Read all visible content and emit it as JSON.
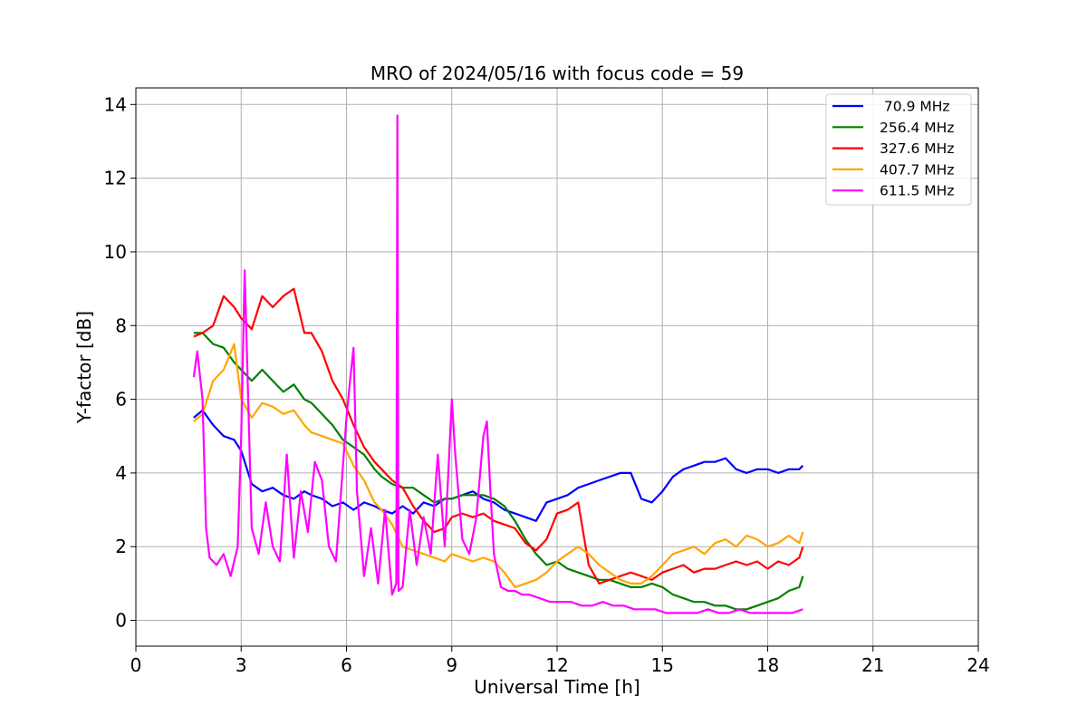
{
  "chart_data": {
    "type": "line",
    "title": "MRO of 2024/05/16 with focus code = 59",
    "xlabel": "Universal Time [h]",
    "ylabel": "Y-factor [dB]",
    "xlim": [
      0,
      24
    ],
    "ylim": [
      -0.7,
      14.45
    ],
    "xticks": [
      "0",
      "3",
      "6",
      "9",
      "12",
      "15",
      "18",
      "21",
      "24"
    ],
    "yticks": [
      "0",
      "2",
      "4",
      "6",
      "8",
      "10",
      "12",
      "14"
    ],
    "grid": true,
    "legend_position": "top-right",
    "series": [
      {
        "name": " 70.9 MHz",
        "color": "#0000ff",
        "x": [
          1.65,
          1.9,
          2.2,
          2.5,
          2.8,
          3.0,
          3.3,
          3.6,
          3.9,
          4.2,
          4.5,
          4.8,
          5.0,
          5.3,
          5.6,
          5.9,
          6.2,
          6.5,
          6.8,
          7.0,
          7.3,
          7.6,
          7.9,
          8.2,
          8.5,
          8.8,
          9.0,
          9.3,
          9.6,
          9.9,
          10.2,
          10.5,
          10.8,
          11.1,
          11.4,
          11.7,
          12.0,
          12.3,
          12.6,
          12.9,
          13.2,
          13.5,
          13.8,
          14.1,
          14.4,
          14.7,
          15.0,
          15.3,
          15.6,
          15.9,
          16.2,
          16.5,
          16.8,
          17.1,
          17.4,
          17.7,
          18.0,
          18.3,
          18.6,
          18.9,
          19.0
        ],
        "y": [
          5.5,
          5.7,
          5.3,
          5.0,
          4.9,
          4.6,
          3.7,
          3.5,
          3.6,
          3.4,
          3.3,
          3.5,
          3.4,
          3.3,
          3.1,
          3.2,
          3.0,
          3.2,
          3.1,
          3.0,
          2.9,
          3.1,
          2.9,
          3.2,
          3.1,
          3.3,
          3.3,
          3.4,
          3.5,
          3.3,
          3.2,
          3.0,
          2.9,
          2.8,
          2.7,
          3.2,
          3.3,
          3.4,
          3.6,
          3.7,
          3.8,
          3.9,
          4.0,
          4.0,
          3.3,
          3.2,
          3.5,
          3.9,
          4.1,
          4.2,
          4.3,
          4.3,
          4.4,
          4.1,
          4.0,
          4.1,
          4.1,
          4.0,
          4.1,
          4.1,
          4.2
        ]
      },
      {
        "name": "256.4 MHz",
        "color": "#008000",
        "x": [
          1.65,
          1.9,
          2.2,
          2.5,
          2.8,
          3.0,
          3.3,
          3.6,
          3.9,
          4.2,
          4.5,
          4.8,
          5.0,
          5.3,
          5.6,
          5.9,
          6.2,
          6.5,
          6.8,
          7.0,
          7.3,
          7.6,
          7.9,
          8.2,
          8.5,
          8.8,
          9.0,
          9.3,
          9.6,
          9.9,
          10.2,
          10.5,
          10.8,
          11.1,
          11.4,
          11.7,
          12.0,
          12.3,
          12.6,
          12.9,
          13.2,
          13.5,
          13.8,
          14.1,
          14.4,
          14.7,
          15.0,
          15.3,
          15.6,
          15.9,
          16.2,
          16.5,
          16.8,
          17.1,
          17.4,
          17.7,
          18.0,
          18.3,
          18.6,
          18.9,
          19.0
        ],
        "y": [
          7.8,
          7.8,
          7.5,
          7.4,
          7.0,
          6.8,
          6.5,
          6.8,
          6.5,
          6.2,
          6.4,
          6.0,
          5.9,
          5.6,
          5.3,
          4.9,
          4.7,
          4.5,
          4.1,
          3.9,
          3.7,
          3.6,
          3.6,
          3.4,
          3.2,
          3.3,
          3.3,
          3.4,
          3.4,
          3.4,
          3.3,
          3.1,
          2.7,
          2.2,
          1.8,
          1.5,
          1.6,
          1.4,
          1.3,
          1.2,
          1.1,
          1.1,
          1.0,
          0.9,
          0.9,
          1.0,
          0.9,
          0.7,
          0.6,
          0.5,
          0.5,
          0.4,
          0.4,
          0.3,
          0.3,
          0.4,
          0.5,
          0.6,
          0.8,
          0.9,
          1.2
        ]
      },
      {
        "name": "327.6 MHz",
        "color": "#ff0000",
        "x": [
          1.65,
          1.9,
          2.2,
          2.5,
          2.8,
          3.0,
          3.3,
          3.6,
          3.9,
          4.2,
          4.5,
          4.8,
          5.0,
          5.3,
          5.6,
          5.9,
          6.2,
          6.5,
          6.8,
          7.0,
          7.3,
          7.6,
          7.9,
          8.2,
          8.5,
          8.8,
          9.0,
          9.3,
          9.6,
          9.9,
          10.2,
          10.5,
          10.8,
          11.1,
          11.4,
          11.7,
          12.0,
          12.3,
          12.6,
          12.9,
          13.2,
          13.5,
          13.8,
          14.1,
          14.4,
          14.7,
          15.0,
          15.3,
          15.6,
          15.9,
          16.2,
          16.5,
          16.8,
          17.1,
          17.4,
          17.7,
          18.0,
          18.3,
          18.6,
          18.9,
          19.0
        ],
        "y": [
          7.7,
          7.8,
          8.0,
          8.8,
          8.5,
          8.2,
          7.9,
          8.8,
          8.5,
          8.8,
          9.0,
          7.8,
          7.8,
          7.3,
          6.5,
          6.0,
          5.3,
          4.7,
          4.3,
          4.1,
          3.8,
          3.6,
          3.1,
          2.7,
          2.4,
          2.5,
          2.8,
          2.9,
          2.8,
          2.9,
          2.7,
          2.6,
          2.5,
          2.1,
          1.9,
          2.2,
          2.9,
          3.0,
          3.2,
          1.5,
          1.0,
          1.1,
          1.2,
          1.3,
          1.2,
          1.1,
          1.3,
          1.4,
          1.5,
          1.3,
          1.4,
          1.4,
          1.5,
          1.6,
          1.5,
          1.6,
          1.4,
          1.6,
          1.5,
          1.7,
          2.0
        ]
      },
      {
        "name": "407.7 MHz",
        "color": "#ffa500",
        "x": [
          1.65,
          1.9,
          2.2,
          2.5,
          2.8,
          3.0,
          3.3,
          3.6,
          3.9,
          4.2,
          4.5,
          4.8,
          5.0,
          5.3,
          5.6,
          5.9,
          6.2,
          6.5,
          6.8,
          7.0,
          7.3,
          7.6,
          7.9,
          8.2,
          8.5,
          8.8,
          9.0,
          9.3,
          9.6,
          9.9,
          10.2,
          10.5,
          10.8,
          11.1,
          11.4,
          11.7,
          12.0,
          12.3,
          12.6,
          12.9,
          13.2,
          13.5,
          13.8,
          14.1,
          14.4,
          14.7,
          15.0,
          15.3,
          15.6,
          15.9,
          16.2,
          16.5,
          16.8,
          17.1,
          17.4,
          17.7,
          18.0,
          18.3,
          18.6,
          18.9,
          19.0
        ],
        "y": [
          5.4,
          5.6,
          6.5,
          6.8,
          7.5,
          6.0,
          5.5,
          5.9,
          5.8,
          5.6,
          5.7,
          5.3,
          5.1,
          5.0,
          4.9,
          4.8,
          4.2,
          3.8,
          3.2,
          3.0,
          2.6,
          2.0,
          1.9,
          1.8,
          1.7,
          1.6,
          1.8,
          1.7,
          1.6,
          1.7,
          1.6,
          1.3,
          0.9,
          1.0,
          1.1,
          1.3,
          1.6,
          1.8,
          2.0,
          1.8,
          1.5,
          1.3,
          1.1,
          1.0,
          1.0,
          1.2,
          1.5,
          1.8,
          1.9,
          2.0,
          1.8,
          2.1,
          2.2,
          2.0,
          2.3,
          2.2,
          2.0,
          2.1,
          2.3,
          2.1,
          2.4
        ]
      },
      {
        "name": "611.5 MHz",
        "color": "#ff00ff",
        "x": [
          1.65,
          1.75,
          1.9,
          2.0,
          2.1,
          2.3,
          2.5,
          2.7,
          2.9,
          3.0,
          3.1,
          3.2,
          3.3,
          3.5,
          3.7,
          3.9,
          4.1,
          4.3,
          4.5,
          4.7,
          4.9,
          5.1,
          5.3,
          5.5,
          5.7,
          5.9,
          6.0,
          6.1,
          6.2,
          6.3,
          6.5,
          6.7,
          6.9,
          7.1,
          7.3,
          7.42,
          7.45,
          7.48,
          7.6,
          7.8,
          8.0,
          8.2,
          8.4,
          8.6,
          8.8,
          9.0,
          9.1,
          9.3,
          9.5,
          9.7,
          9.9,
          10.0,
          10.1,
          10.2,
          10.4,
          10.6,
          10.8,
          11.0,
          11.2,
          11.5,
          11.8,
          12.1,
          12.4,
          12.7,
          13.0,
          13.3,
          13.6,
          13.9,
          14.2,
          14.5,
          14.8,
          15.1,
          15.4,
          15.7,
          16.0,
          16.3,
          16.6,
          16.9,
          17.2,
          17.5,
          17.8,
          18.1,
          18.4,
          18.7,
          19.0
        ],
        "y": [
          6.6,
          7.3,
          6.0,
          2.5,
          1.7,
          1.5,
          1.8,
          1.2,
          2.0,
          5.0,
          9.5,
          6.0,
          2.5,
          1.8,
          3.2,
          2.0,
          1.6,
          4.5,
          1.7,
          3.5,
          2.4,
          4.3,
          3.8,
          2.0,
          1.6,
          4.2,
          5.5,
          6.5,
          7.4,
          3.5,
          1.2,
          2.5,
          1.0,
          3.0,
          0.7,
          1.0,
          13.7,
          0.8,
          0.9,
          3.0,
          1.5,
          2.8,
          1.8,
          4.5,
          2.0,
          6.0,
          4.5,
          2.2,
          1.8,
          2.8,
          5.0,
          5.4,
          3.5,
          1.8,
          0.9,
          0.8,
          0.8,
          0.7,
          0.7,
          0.6,
          0.5,
          0.5,
          0.5,
          0.4,
          0.4,
          0.5,
          0.4,
          0.4,
          0.3,
          0.3,
          0.3,
          0.2,
          0.2,
          0.2,
          0.2,
          0.3,
          0.2,
          0.2,
          0.3,
          0.2,
          0.2,
          0.2,
          0.2,
          0.2,
          0.3
        ]
      }
    ]
  }
}
